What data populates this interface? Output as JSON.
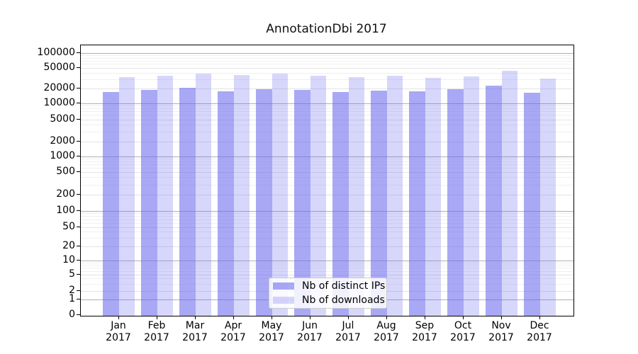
{
  "chart_data": {
    "type": "bar",
    "title": "AnnotationDbi 2017",
    "categories": [
      "Jan",
      "Feb",
      "Mar",
      "Apr",
      "May",
      "Jun",
      "Jul",
      "Aug",
      "Sep",
      "Oct",
      "Nov",
      "Dec"
    ],
    "year": "2017",
    "series": [
      {
        "name": "Nb of distinct IPs",
        "color": "#6666ee",
        "alpha": 0.57,
        "values": [
          16900,
          18500,
          20400,
          17500,
          19100,
          18500,
          16700,
          17900,
          17300,
          19500,
          22400,
          16300
        ]
      },
      {
        "name": "Nb of downloads",
        "color": "#6666ee",
        "alpha": 0.26,
        "values": [
          32500,
          34900,
          38600,
          36000,
          37900,
          35200,
          32800,
          34900,
          31800,
          33500,
          42900,
          30800
        ]
      }
    ],
    "yscale": "symlog",
    "ylim": [
      0,
      150000
    ],
    "y_tick_labels": [
      "100000",
      "50000",
      "20000",
      "10000",
      "5000",
      "2000",
      "1000",
      "500",
      "200",
      "100",
      "50",
      "20",
      "10",
      "5",
      "2",
      "1",
      "0"
    ],
    "grid": "on",
    "legend_position": "lower center"
  },
  "colors": {
    "bar_dark": "rgba(102,102,238,0.57)",
    "bar_light": "rgba(102,102,238,0.26)",
    "grid_major": "#b0b0b0",
    "grid_mid": "#e3e3e3",
    "grid_minor": "#f0f0f0",
    "axis": "#000000",
    "legend_border": "#cccccc"
  }
}
